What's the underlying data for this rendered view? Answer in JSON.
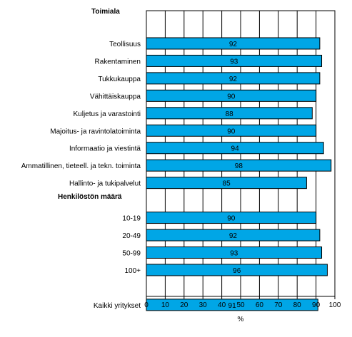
{
  "chart_data": {
    "type": "bar",
    "orientation": "horizontal",
    "xlabel": "%",
    "xlim": [
      0,
      100
    ],
    "x_ticks": [
      0,
      10,
      20,
      30,
      40,
      50,
      60,
      70,
      80,
      90,
      100
    ],
    "grid": "vertical",
    "bar_color": "#00A6E6",
    "rows": [
      {
        "kind": "header",
        "label": "Toimiala"
      },
      {
        "kind": "bar",
        "label": "Teollisuus",
        "value": 92
      },
      {
        "kind": "bar",
        "label": "Rakentaminen",
        "value": 93
      },
      {
        "kind": "bar",
        "label": "Tukkukauppa",
        "value": 92
      },
      {
        "kind": "bar",
        "label": "Vähittäiskauppa",
        "value": 90
      },
      {
        "kind": "bar",
        "label": "Kuljetus ja varastointi",
        "value": 88
      },
      {
        "kind": "bar",
        "label": "Majoitus- ja ravintolatoiminta",
        "value": 90
      },
      {
        "kind": "bar",
        "label": "Informaatio ja viestintä",
        "value": 94
      },
      {
        "kind": "bar",
        "label": "Ammatillinen, tieteell. ja tekn. toiminta",
        "value": 98
      },
      {
        "kind": "bar",
        "label": "Hallinto- ja tukipalvelut",
        "value": 85
      },
      {
        "kind": "header",
        "label": "Henkilöstön määrä"
      },
      {
        "kind": "bar",
        "label": "10-19",
        "value": 90
      },
      {
        "kind": "bar",
        "label": "20-49",
        "value": 92
      },
      {
        "kind": "bar",
        "label": "50-99",
        "value": 93
      },
      {
        "kind": "bar",
        "label": "100+",
        "value": 96
      },
      {
        "kind": "spacer",
        "label": ""
      },
      {
        "kind": "bar",
        "label": "Kaikki yritykset",
        "value": 91
      }
    ]
  }
}
